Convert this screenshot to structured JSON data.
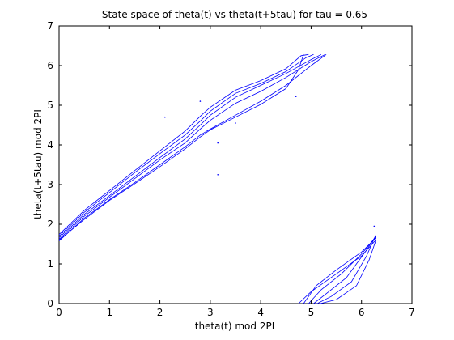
{
  "chart_data": {
    "type": "line",
    "title": "State space of theta(t) vs theta(t+5tau) for tau = 0.65",
    "xlabel": "theta(t) mod 2PI",
    "ylabel": "theta(t+5tau) mod 2PI",
    "xlim": [
      0,
      7
    ],
    "ylim": [
      0,
      7
    ],
    "xticks": [
      "0",
      "1",
      "2",
      "3",
      "4",
      "5",
      "6",
      "7"
    ],
    "yticks": [
      "0",
      "1",
      "2",
      "3",
      "4",
      "5",
      "6",
      "7"
    ],
    "grid": false,
    "line_color": "#0000ff",
    "series": [
      {
        "x": [
          0.0,
          0.5,
          1.0,
          1.5,
          2.0,
          2.5,
          2.8,
          3.0,
          3.5,
          4.0,
          4.5,
          5.0,
          5.3
        ],
        "y": [
          1.58,
          2.15,
          2.62,
          3.05,
          3.5,
          3.95,
          4.25,
          4.4,
          4.75,
          5.1,
          5.5,
          6.0,
          6.28
        ]
      },
      {
        "x": [
          0.0,
          0.5,
          1.0,
          1.5,
          2.0,
          2.5,
          2.8,
          3.0,
          3.5,
          4.0,
          4.5,
          5.0,
          5.28
        ],
        "y": [
          1.62,
          2.2,
          2.68,
          3.15,
          3.62,
          4.05,
          4.4,
          4.62,
          5.05,
          5.35,
          5.7,
          6.1,
          6.28
        ]
      },
      {
        "x": [
          0.0,
          0.5,
          1.0,
          1.5,
          2.0,
          2.5,
          2.8,
          3.0,
          3.5,
          4.0,
          4.5,
          5.0,
          5.2
        ],
        "y": [
          1.66,
          2.25,
          2.72,
          3.2,
          3.68,
          4.15,
          4.5,
          4.75,
          5.2,
          5.5,
          5.8,
          6.15,
          6.28
        ]
      },
      {
        "x": [
          0.0,
          0.5,
          1.0,
          1.5,
          2.0,
          2.5,
          2.8,
          3.0,
          3.5,
          4.0,
          4.5,
          4.9,
          5.05
        ],
        "y": [
          1.7,
          2.3,
          2.8,
          3.3,
          3.78,
          4.25,
          4.6,
          4.85,
          5.3,
          5.55,
          5.85,
          6.2,
          6.28
        ]
      },
      {
        "x": [
          0.0,
          0.5,
          1.0,
          1.5,
          2.0,
          2.5,
          2.8,
          3.0,
          3.5,
          4.0,
          4.5,
          4.8,
          4.95
        ],
        "y": [
          1.74,
          2.35,
          2.85,
          3.35,
          3.85,
          4.35,
          4.72,
          4.95,
          5.38,
          5.62,
          5.92,
          6.25,
          6.28
        ]
      },
      {
        "x": [
          0.0,
          0.5,
          1.0,
          1.5,
          2.0,
          2.5,
          2.8,
          3.0,
          3.5,
          4.0,
          4.5,
          4.75,
          4.85
        ],
        "y": [
          1.6,
          2.12,
          2.6,
          3.02,
          3.45,
          3.9,
          4.2,
          4.38,
          4.7,
          5.02,
          5.42,
          5.9,
          6.28
        ]
      },
      {
        "x": [
          4.75,
          5.0,
          5.5,
          6.0,
          6.28
        ],
        "y": [
          0.0,
          0.3,
          0.75,
          1.2,
          1.6
        ]
      },
      {
        "x": [
          4.85,
          5.1,
          5.5,
          6.0,
          6.28
        ],
        "y": [
          0.0,
          0.45,
          0.85,
          1.3,
          1.65
        ]
      },
      {
        "x": [
          4.95,
          5.2,
          5.6,
          6.0,
          6.28
        ],
        "y": [
          0.0,
          0.35,
          0.75,
          1.25,
          1.68
        ]
      },
      {
        "x": [
          5.05,
          5.3,
          5.7,
          6.1,
          6.28
        ],
        "y": [
          0.0,
          0.25,
          0.65,
          1.35,
          1.7
        ]
      },
      {
        "x": [
          5.12,
          5.4,
          5.8,
          6.1,
          6.28
        ],
        "y": [
          0.0,
          0.18,
          0.55,
          1.2,
          1.72
        ]
      },
      {
        "x": [
          5.18,
          5.5,
          5.9,
          6.15,
          6.28
        ],
        "y": [
          0.0,
          0.1,
          0.45,
          1.1,
          1.58
        ]
      }
    ],
    "scatter_points": {
      "x": [
        2.1,
        2.8,
        3.15,
        3.15,
        3.5,
        4.7,
        6.25
      ],
      "y": [
        4.7,
        5.1,
        4.05,
        3.25,
        4.55,
        5.22,
        1.95
      ]
    }
  }
}
